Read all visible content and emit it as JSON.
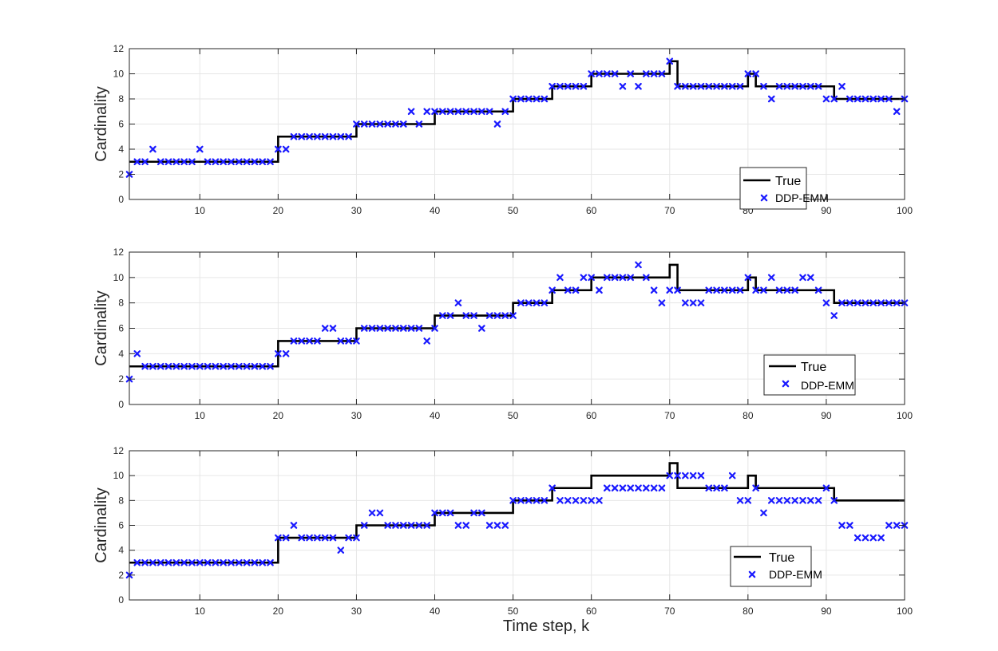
{
  "colors": {
    "true_line": "#000000",
    "markers": "#1a1aff",
    "grid": "#e6e6e6",
    "axis": "#262626"
  },
  "xlabel": "Time step, k",
  "chart_data": [
    {
      "type": "line",
      "ylabel": "Cardinality",
      "xlim": [
        1,
        100
      ],
      "ylim": [
        0,
        12
      ],
      "xticks": [
        10,
        20,
        30,
        40,
        50,
        60,
        70,
        80,
        90,
        100
      ],
      "yticks": [
        0,
        2,
        4,
        6,
        8,
        10,
        12
      ],
      "grid": true,
      "legend": {
        "entries": [
          "True",
          "DDP-EMM"
        ]
      },
      "series": [
        {
          "name": "True",
          "style": "step",
          "x": [
            1,
            20,
            30,
            40,
            50,
            55,
            60,
            70,
            71,
            80,
            81,
            91,
            100
          ],
          "y": [
            3,
            5,
            6,
            7,
            8,
            9,
            10,
            11,
            9,
            10,
            9,
            8,
            8
          ]
        },
        {
          "name": "DDP-EMM",
          "style": "marker",
          "x": [
            1,
            2,
            3,
            4,
            5,
            6,
            7,
            8,
            9,
            10,
            11,
            12,
            13,
            14,
            15,
            16,
            17,
            18,
            19,
            20,
            21,
            22,
            23,
            24,
            25,
            26,
            27,
            28,
            29,
            30,
            31,
            32,
            33,
            34,
            35,
            36,
            37,
            38,
            39,
            40,
            41,
            42,
            43,
            44,
            45,
            46,
            47,
            48,
            49,
            50,
            51,
            52,
            53,
            54,
            55,
            56,
            57,
            58,
            59,
            60,
            61,
            62,
            63,
            64,
            65,
            66,
            67,
            68,
            69,
            70,
            71,
            72,
            73,
            74,
            75,
            76,
            77,
            78,
            79,
            80,
            81,
            82,
            83,
            84,
            85,
            86,
            87,
            88,
            89,
            90,
            91,
            92,
            93,
            94,
            95,
            96,
            97,
            98,
            99,
            100
          ],
          "y": [
            2,
            3,
            3,
            4,
            3,
            3,
            3,
            3,
            3,
            4,
            3,
            3,
            3,
            3,
            3,
            3,
            3,
            3,
            3,
            4,
            4,
            5,
            5,
            5,
            5,
            5,
            5,
            5,
            5,
            6,
            6,
            6,
            6,
            6,
            6,
            6,
            7,
            6,
            7,
            7,
            7,
            7,
            7,
            7,
            7,
            7,
            7,
            6,
            7,
            8,
            8,
            8,
            8,
            8,
            9,
            9,
            9,
            9,
            9,
            10,
            10,
            10,
            10,
            9,
            10,
            9,
            10,
            10,
            10,
            11,
            9,
            9,
            9,
            9,
            9,
            9,
            9,
            9,
            9,
            10,
            10,
            9,
            8,
            9,
            9,
            9,
            9,
            9,
            9,
            8,
            8,
            9,
            8,
            8,
            8,
            8,
            8,
            8,
            7,
            8
          ]
        }
      ]
    },
    {
      "type": "line",
      "ylabel": "Cardinality",
      "xlim": [
        1,
        100
      ],
      "ylim": [
        0,
        12
      ],
      "xticks": [
        10,
        20,
        30,
        40,
        50,
        60,
        70,
        80,
        90,
        100
      ],
      "yticks": [
        0,
        2,
        4,
        6,
        8,
        10,
        12
      ],
      "grid": true,
      "legend": {
        "entries": [
          "True",
          "DDP-EMM"
        ]
      },
      "series": [
        {
          "name": "True",
          "style": "step",
          "x": [
            1,
            20,
            30,
            40,
            50,
            55,
            60,
            70,
            71,
            80,
            81,
            91,
            100
          ],
          "y": [
            3,
            5,
            6,
            7,
            8,
            9,
            10,
            11,
            9,
            10,
            9,
            8,
            8
          ]
        },
        {
          "name": "DDP-EMM",
          "style": "marker",
          "x": [
            1,
            2,
            3,
            4,
            5,
            6,
            7,
            8,
            9,
            10,
            11,
            12,
            13,
            14,
            15,
            16,
            17,
            18,
            19,
            20,
            21,
            22,
            23,
            24,
            25,
            26,
            27,
            28,
            29,
            30,
            31,
            32,
            33,
            34,
            35,
            36,
            37,
            38,
            39,
            40,
            41,
            42,
            43,
            44,
            45,
            46,
            47,
            48,
            49,
            50,
            51,
            52,
            53,
            54,
            55,
            56,
            57,
            58,
            59,
            60,
            61,
            62,
            63,
            64,
            65,
            66,
            67,
            68,
            69,
            70,
            71,
            72,
            73,
            74,
            75,
            76,
            77,
            78,
            79,
            80,
            81,
            82,
            83,
            84,
            85,
            86,
            87,
            88,
            89,
            90,
            91,
            92,
            93,
            94,
            95,
            96,
            97,
            98,
            99,
            100
          ],
          "y": [
            2,
            4,
            3,
            3,
            3,
            3,
            3,
            3,
            3,
            3,
            3,
            3,
            3,
            3,
            3,
            3,
            3,
            3,
            3,
            4,
            4,
            5,
            5,
            5,
            5,
            6,
            6,
            5,
            5,
            5,
            6,
            6,
            6,
            6,
            6,
            6,
            6,
            6,
            5,
            6,
            7,
            7,
            8,
            7,
            7,
            6,
            7,
            7,
            7,
            7,
            8,
            8,
            8,
            8,
            9,
            10,
            9,
            9,
            10,
            10,
            9,
            10,
            10,
            10,
            10,
            11,
            10,
            9,
            8,
            9,
            9,
            8,
            8,
            8,
            9,
            9,
            9,
            9,
            9,
            10,
            9,
            9,
            10,
            9,
            9,
            9,
            10,
            10,
            9,
            8,
            7,
            8,
            8,
            8,
            8,
            8,
            8,
            8,
            8,
            8
          ]
        }
      ]
    },
    {
      "type": "line",
      "ylabel": "Cardinality",
      "xlim": [
        1,
        100
      ],
      "ylim": [
        0,
        12
      ],
      "xticks": [
        10,
        20,
        30,
        40,
        50,
        60,
        70,
        80,
        90,
        100
      ],
      "yticks": [
        0,
        2,
        4,
        6,
        8,
        10,
        12
      ],
      "grid": true,
      "legend": {
        "entries": [
          "True",
          "DDP-EMM"
        ]
      },
      "series": [
        {
          "name": "True",
          "style": "step",
          "x": [
            1,
            20,
            30,
            40,
            50,
            55,
            60,
            70,
            71,
            80,
            81,
            91,
            100
          ],
          "y": [
            3,
            5,
            6,
            7,
            8,
            9,
            10,
            11,
            9,
            10,
            9,
            8,
            8
          ]
        },
        {
          "name": "DDP-EMM",
          "style": "marker",
          "x": [
            1,
            2,
            3,
            4,
            5,
            6,
            7,
            8,
            9,
            10,
            11,
            12,
            13,
            14,
            15,
            16,
            17,
            18,
            19,
            20,
            21,
            22,
            23,
            24,
            25,
            26,
            27,
            28,
            29,
            30,
            31,
            32,
            33,
            34,
            35,
            36,
            37,
            38,
            39,
            40,
            41,
            42,
            43,
            44,
            45,
            46,
            47,
            48,
            49,
            50,
            51,
            52,
            53,
            54,
            55,
            56,
            57,
            58,
            59,
            60,
            61,
            62,
            63,
            64,
            65,
            66,
            67,
            68,
            69,
            70,
            71,
            72,
            73,
            74,
            75,
            76,
            77,
            78,
            79,
            80,
            81,
            82,
            83,
            84,
            85,
            86,
            87,
            88,
            89,
            90,
            91,
            92,
            93,
            94,
            95,
            96,
            97,
            98,
            99,
            100
          ],
          "y": [
            2,
            3,
            3,
            3,
            3,
            3,
            3,
            3,
            3,
            3,
            3,
            3,
            3,
            3,
            3,
            3,
            3,
            3,
            3,
            5,
            5,
            6,
            5,
            5,
            5,
            5,
            5,
            4,
            5,
            5,
            6,
            7,
            7,
            6,
            6,
            6,
            6,
            6,
            6,
            7,
            7,
            7,
            6,
            6,
            7,
            7,
            6,
            6,
            6,
            8,
            8,
            8,
            8,
            8,
            9,
            8,
            8,
            8,
            8,
            8,
            8,
            9,
            9,
            9,
            9,
            9,
            9,
            9,
            9,
            10,
            10,
            10,
            10,
            10,
            9,
            9,
            9,
            10,
            8,
            8,
            9,
            7,
            8,
            8,
            8,
            8,
            8,
            8,
            8,
            9,
            8,
            6,
            6,
            5,
            5,
            5,
            5,
            6,
            6,
            6
          ]
        }
      ]
    }
  ]
}
